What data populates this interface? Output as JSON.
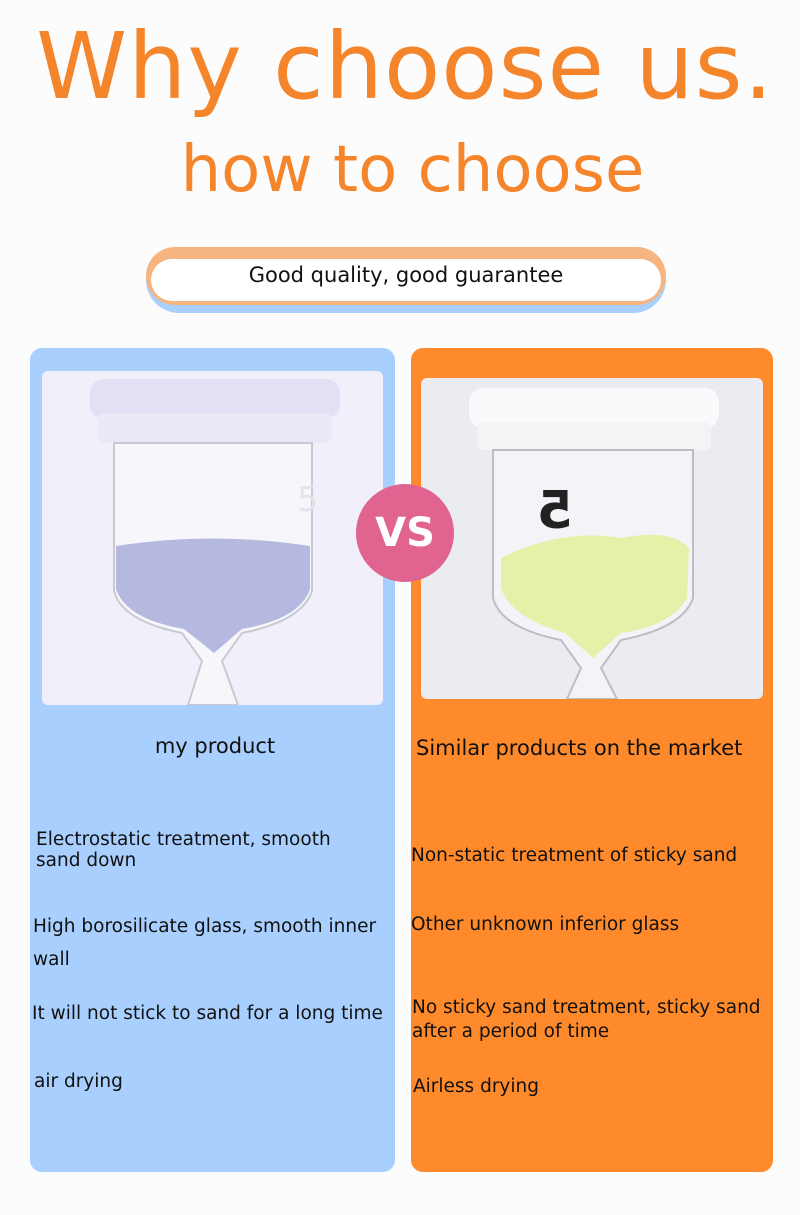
{
  "header": {
    "title": "Why choose us.",
    "subtitle": "how to choose",
    "tagline": "Good quality, good guarantee"
  },
  "colors": {
    "accent_orange": "#f5852b",
    "left_panel": "#a8cffd",
    "right_panel": "#ff8a2b",
    "vs_badge": "#e0648f"
  },
  "vs_label": "VS",
  "left": {
    "heading": "my product",
    "image": "hourglass-blue-sand-photo",
    "items": [
      "Electrostatic treatment, smooth sand down",
      "High borosilicate glass, smooth inner wall",
      "It will not stick to sand for a long time",
      "air drying"
    ]
  },
  "right": {
    "heading": "Similar products on the market",
    "image": "hourglass-sticky-green-sand-photo",
    "items": [
      "Non-static treatment of sticky sand",
      "Other unknown inferior glass",
      "No sticky sand treatment, sticky sand after a period of time",
      "Airless drying"
    ]
  }
}
